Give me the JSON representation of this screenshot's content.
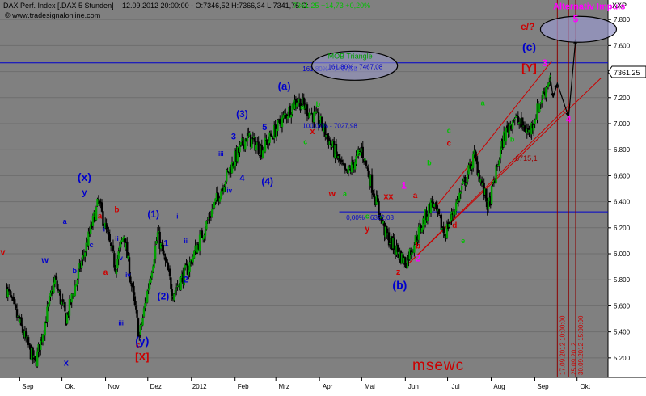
{
  "header": {
    "instrument": "DAX Perf. Index [.DAX  5 Stunden]",
    "quote": "12.09.2012 20:00:00 - O:7346,52 H:7366,34 L:7341,75 C:",
    "change": "7361,25 +14,73 +0,20%",
    "copyright": "© www.tradesignalonline.com",
    "axis_code": "XXP",
    "price_tag": "7361,25"
  },
  "watermark": "msewc",
  "colors": {
    "background": "#808080",
    "up_candle": "#00a000",
    "down_candle": "#000000",
    "blue": "#0000cc",
    "red": "#cc0000",
    "magenta": "#ff00ff",
    "green": "#00c000",
    "dark_red": "#800000"
  },
  "chart_data": {
    "type": "candlestick",
    "x_ticks": [
      "Sep",
      "Okt",
      "Nov",
      "Dez",
      "2012",
      "Feb",
      "Mrz",
      "Apr",
      "Mai",
      "Jun",
      "Jul",
      "Aug",
      "Sep",
      "Okt"
    ],
    "y_ticks": [
      5200,
      5400,
      5600,
      5800,
      6000,
      6200,
      6400,
      6600,
      6800,
      7000,
      7200,
      7400,
      7600,
      7800
    ],
    "ylim": [
      5050,
      7950
    ],
    "last_close": 7361.25,
    "price_path": [
      {
        "x": "2011-08-22",
        "y": 5750
      },
      {
        "x": "2011-09-12",
        "y": 5150
      },
      {
        "x": "2011-09-26",
        "y": 5800
      },
      {
        "x": "2011-10-04",
        "y": 5500
      },
      {
        "x": "2011-10-27",
        "y": 6400
      },
      {
        "x": "2011-11-08",
        "y": 5900
      },
      {
        "x": "2011-11-14",
        "y": 6150
      },
      {
        "x": "2011-11-25",
        "y": 5360
      },
      {
        "x": "2011-12-08",
        "y": 6150
      },
      {
        "x": "2011-12-19",
        "y": 5700
      },
      {
        "x": "2011-12-30",
        "y": 5900
      },
      {
        "x": "2012-01-26",
        "y": 6600
      },
      {
        "x": "2012-02-09",
        "y": 6900
      },
      {
        "x": "2012-02-20",
        "y": 6800
      },
      {
        "x": "2012-03-16",
        "y": 7190
      },
      {
        "x": "2012-04-02",
        "y": 7000
      },
      {
        "x": "2012-04-20",
        "y": 6600
      },
      {
        "x": "2012-05-01",
        "y": 6800
      },
      {
        "x": "2012-05-18",
        "y": 6150
      },
      {
        "x": "2012-06-01",
        "y": 5930
      },
      {
        "x": "2012-06-20",
        "y": 6400
      },
      {
        "x": "2012-06-29",
        "y": 6150
      },
      {
        "x": "2012-07-20",
        "y": 6750
      },
      {
        "x": "2012-07-30",
        "y": 6350
      },
      {
        "x": "2012-08-10",
        "y": 6900
      },
      {
        "x": "2012-08-17",
        "y": 7050
      },
      {
        "x": "2012-08-28",
        "y": 6930
      },
      {
        "x": "2012-09-06",
        "y": 7200
      },
      {
        "x": "2012-09-12",
        "y": 7361
      }
    ],
    "horizontal_levels": [
      {
        "price": 7467.08,
        "label": "161,80% - 7467,08",
        "color": "#0000cc"
      },
      {
        "price": 7027.98,
        "label": "100,00% - 7027,98",
        "color": "#0000cc"
      },
      {
        "price": 6322.08,
        "label": "0,00% - 6322,08",
        "color": "#0000cc"
      },
      {
        "price": 6715.1,
        "label": "6715,1",
        "color": "#cc0000"
      }
    ],
    "vertical_lines": [
      {
        "date": "17.09.2012 10:00:00",
        "x": "2012-09-17"
      },
      {
        "date": "25.09.2012",
        "x": "2012-09-25"
      },
      {
        "date": "30.09.2012 15:00:00",
        "x": "2012-09-30"
      }
    ],
    "channel": [
      {
        "from": {
          "x": "2012-06-01",
          "y": 5900
        },
        "to": {
          "x": "2012-09-26",
          "y": 7150
        }
      },
      {
        "from": {
          "x": "2012-06-22",
          "y": 6350
        },
        "to": {
          "x": "2012-09-13",
          "y": 7480
        }
      }
    ],
    "projection_path": [
      {
        "x": "2012-09-12",
        "y": 7361
      },
      {
        "x": "2012-09-14",
        "y": 7200
      },
      {
        "x": "2012-09-17",
        "y": 7310
      },
      {
        "x": "2012-09-25",
        "y": 7050
      },
      {
        "x": "2012-09-30",
        "y": 7650
      }
    ],
    "ellipses": [
      {
        "title": "MOB Triangle",
        "subtitle": "161,80% - 7467,08"
      },
      {
        "title": "Alternativ Impuls"
      }
    ],
    "wave_labels": [
      {
        "text": "(x)",
        "color": "#0000cc",
        "x": "2011-10-17",
        "y": 6560,
        "size": 14
      },
      {
        "text": "y",
        "color": "#0000cc",
        "x": "2011-10-17",
        "y": 6450,
        "size": 11
      },
      {
        "text": "a",
        "color": "#0000cc",
        "x": "2011-10-03",
        "y": 6230,
        "size": 9
      },
      {
        "text": "b",
        "color": "#0000cc",
        "x": "2011-10-10",
        "y": 5850,
        "size": 9
      },
      {
        "text": "c",
        "color": "#0000cc",
        "x": "2011-10-22",
        "y": 6050,
        "size": 9
      },
      {
        "text": "w",
        "color": "#0000cc",
        "x": "2011-09-19",
        "y": 5930,
        "size": 11
      },
      {
        "text": "x",
        "color": "#0000cc",
        "x": "2011-10-04",
        "y": 5140,
        "size": 11
      },
      {
        "text": "v",
        "color": "#cc0000",
        "x": "2011-08-20",
        "y": 5990,
        "size": 11
      },
      {
        "text": "a",
        "color": "#cc0000",
        "x": "2011-10-28",
        "y": 6270,
        "size": 10
      },
      {
        "text": "b",
        "color": "#cc0000",
        "x": "2011-11-09",
        "y": 6320,
        "size": 10
      },
      {
        "text": "a",
        "color": "#cc0000",
        "x": "2011-11-01",
        "y": 5840,
        "size": 10
      },
      {
        "text": "c",
        "color": "#cc0000",
        "x": "2011-11-24",
        "y": 5280,
        "size": 10
      },
      {
        "text": "i",
        "color": "#0000cc",
        "x": "2011-10-31",
        "y": 6170,
        "size": 8
      },
      {
        "text": "ii",
        "color": "#0000cc",
        "x": "2011-11-09",
        "y": 6100,
        "size": 8
      },
      {
        "text": "iv",
        "color": "#0000cc",
        "x": "2011-11-17",
        "y": 5820,
        "size": 8
      },
      {
        "text": "iii",
        "color": "#0000cc",
        "x": "2011-11-12",
        "y": 5450,
        "size": 8
      },
      {
        "text": "v",
        "color": "#0000cc",
        "x": "2011-11-12",
        "y": 5950,
        "size": 8
      },
      {
        "text": "(y)",
        "color": "#0000cc",
        "x": "2011-11-27",
        "y": 5300,
        "size": 14
      },
      {
        "text": "[X]",
        "color": "#cc0000",
        "x": "2011-11-27",
        "y": 5180,
        "size": 13
      },
      {
        "text": "(1)",
        "color": "#0000cc",
        "x": "2011-12-05",
        "y": 6280,
        "size": 12
      },
      {
        "text": "1",
        "color": "#0000cc",
        "x": "2011-12-14",
        "y": 6060,
        "size": 11
      },
      {
        "text": "2",
        "color": "#0000cc",
        "x": "2011-12-28",
        "y": 5780,
        "size": 11
      },
      {
        "text": "(2)",
        "color": "#0000cc",
        "x": "2011-12-12",
        "y": 5650,
        "size": 12
      },
      {
        "text": "i",
        "color": "#0000cc",
        "x": "2011-12-22",
        "y": 6270,
        "size": 8
      },
      {
        "text": "ii",
        "color": "#0000cc",
        "x": "2011-12-28",
        "y": 6080,
        "size": 8
      },
      {
        "text": "iii",
        "color": "#0000cc",
        "x": "2012-01-22",
        "y": 6750,
        "size": 8
      },
      {
        "text": "iv",
        "color": "#0000cc",
        "x": "2012-01-28",
        "y": 6470,
        "size": 8
      },
      {
        "text": "3",
        "color": "#0000cc",
        "x": "2012-01-31",
        "y": 6880,
        "size": 11
      },
      {
        "text": "(3)",
        "color": "#0000cc",
        "x": "2012-02-06",
        "y": 7050,
        "size": 12
      },
      {
        "text": "4",
        "color": "#0000cc",
        "x": "2012-02-06",
        "y": 6560,
        "size": 11
      },
      {
        "text": "(4)",
        "color": "#0000cc",
        "x": "2012-02-24",
        "y": 6530,
        "size": 12
      },
      {
        "text": "5",
        "color": "#0000cc",
        "x": "2012-02-22",
        "y": 6950,
        "size": 11
      },
      {
        "text": "(a)",
        "color": "#0000cc",
        "x": "2012-03-07",
        "y": 7260,
        "size": 13
      },
      {
        "text": "a",
        "color": "#00c000",
        "x": "2012-03-20",
        "y": 7110,
        "size": 9
      },
      {
        "text": "b",
        "color": "#00c000",
        "x": "2012-03-31",
        "y": 7130,
        "size": 9
      },
      {
        "text": "c",
        "color": "#00c000",
        "x": "2012-03-22",
        "y": 6840,
        "size": 9
      },
      {
        "text": "x",
        "color": "#cc0000",
        "x": "2012-03-27",
        "y": 6920,
        "size": 11
      },
      {
        "text": "w",
        "color": "#cc0000",
        "x": "2012-04-10",
        "y": 6440,
        "size": 11
      },
      {
        "text": "b",
        "color": "#00c000",
        "x": "2012-04-29",
        "y": 6750,
        "size": 9
      },
      {
        "text": "a",
        "color": "#00c000",
        "x": "2012-04-19",
        "y": 6440,
        "size": 9
      },
      {
        "text": "c",
        "color": "#00c000",
        "x": "2012-05-05",
        "y": 6270,
        "size": 9
      },
      {
        "text": "xx",
        "color": "#cc0000",
        "x": "2012-05-20",
        "y": 6420,
        "size": 11
      },
      {
        "text": "y",
        "color": "#cc0000",
        "x": "2012-05-05",
        "y": 6170,
        "size": 11
      },
      {
        "text": "z",
        "color": "#cc0000",
        "x": "2012-05-27",
        "y": 5840,
        "size": 11
      },
      {
        "text": "(b)",
        "color": "#0000cc",
        "x": "2012-05-28",
        "y": 5730,
        "size": 14
      },
      {
        "text": "1",
        "color": "#ff00ff",
        "x": "2012-05-31",
        "y": 6500,
        "size": 12
      },
      {
        "text": "a",
        "color": "#cc0000",
        "x": "2012-06-08",
        "y": 6430,
        "size": 10
      },
      {
        "text": "b",
        "color": "#cc0000",
        "x": "2012-06-10",
        "y": 6040,
        "size": 10
      },
      {
        "text": "2",
        "color": "#ff00ff",
        "x": "2012-06-10",
        "y": 5940,
        "size": 12
      },
      {
        "text": "c",
        "color": "#cc0000",
        "x": "2012-07-02",
        "y": 6830,
        "size": 10
      },
      {
        "text": "d",
        "color": "#cc0000",
        "x": "2012-07-06",
        "y": 6200,
        "size": 10
      },
      {
        "text": "c",
        "color": "#00c000",
        "x": "2012-07-02",
        "y": 6930,
        "size": 9
      },
      {
        "text": "e",
        "color": "#00c000",
        "x": "2012-07-06",
        "y": 6300,
        "size": 9
      },
      {
        "text": "e",
        "color": "#00c000",
        "x": "2012-07-12",
        "y": 6080,
        "size": 9
      },
      {
        "text": "b",
        "color": "#00c000",
        "x": "2012-06-18",
        "y": 6680,
        "size": 9
      },
      {
        "text": "a",
        "color": "#00c000",
        "x": "2012-07-26",
        "y": 7140,
        "size": 9
      },
      {
        "text": "b",
        "color": "#00c000",
        "x": "2012-08-16",
        "y": 6860,
        "size": 9
      },
      {
        "text": "e/?",
        "color": "#cc0000",
        "x": "2012-08-27",
        "y": 7720,
        "size": 12
      },
      {
        "text": "(c)",
        "color": "#0000cc",
        "x": "2012-08-28",
        "y": 7560,
        "size": 14
      },
      {
        "text": "[Y]",
        "color": "#cc0000",
        "x": "2012-08-28",
        "y": 7400,
        "size": 14
      },
      {
        "text": "3",
        "color": "#ff00ff",
        "x": "2012-09-08",
        "y": 7440,
        "size": 12
      },
      {
        "text": "4",
        "color": "#ff00ff",
        "x": "2012-09-25",
        "y": 7010,
        "size": 12
      },
      {
        "text": "5",
        "color": "#ff00ff",
        "x": "2012-09-30",
        "y": 7780,
        "size": 12
      }
    ]
  }
}
